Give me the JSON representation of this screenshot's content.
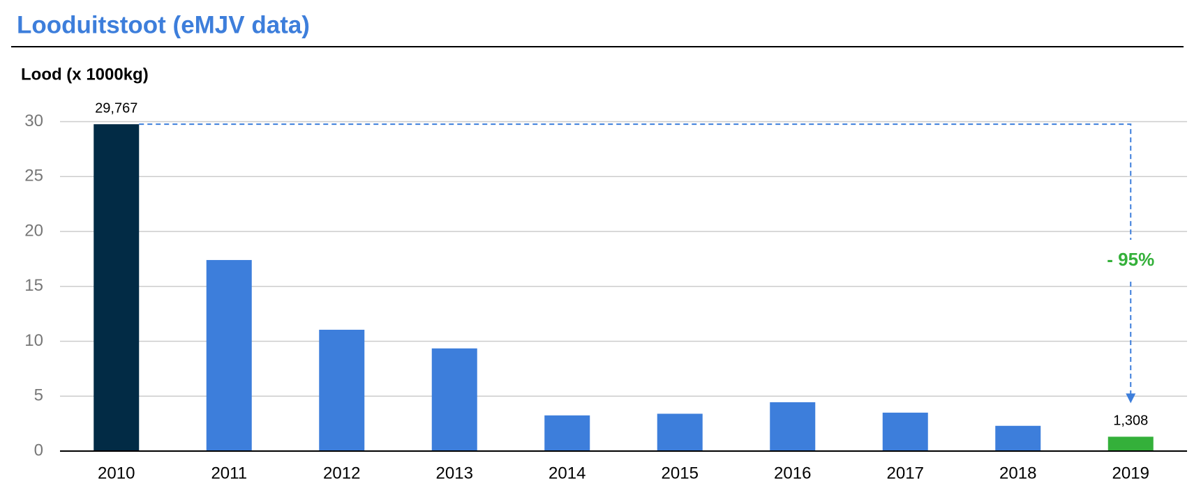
{
  "chart_data": {
    "type": "bar",
    "title": "Looduitstoot (eMJV data)",
    "y_label": "Lood (x 1000kg)",
    "annotation": "- 95%",
    "categories": [
      "2010",
      "2011",
      "2012",
      "2013",
      "2014",
      "2015",
      "2016",
      "2017",
      "2018",
      "2019"
    ],
    "values": [
      29.767,
      17.4,
      11.05,
      9.35,
      3.25,
      3.4,
      4.45,
      3.5,
      2.3,
      1.308
    ],
    "value_labels": [
      "29,767",
      null,
      null,
      null,
      null,
      null,
      null,
      null,
      null,
      "1,308"
    ],
    "colors": [
      "#022b45",
      "#3d7edb",
      "#3d7edb",
      "#3d7edb",
      "#3d7edb",
      "#3d7edb",
      "#3d7edb",
      "#3d7edb",
      "#3d7edb",
      "#34b03a"
    ],
    "annotation_color": "#34b03a",
    "arrow_color": "#3d7edb",
    "ylim": [
      0,
      30
    ],
    "yticks": [
      0,
      5,
      10,
      15,
      20,
      25,
      30
    ],
    "grid": true
  }
}
